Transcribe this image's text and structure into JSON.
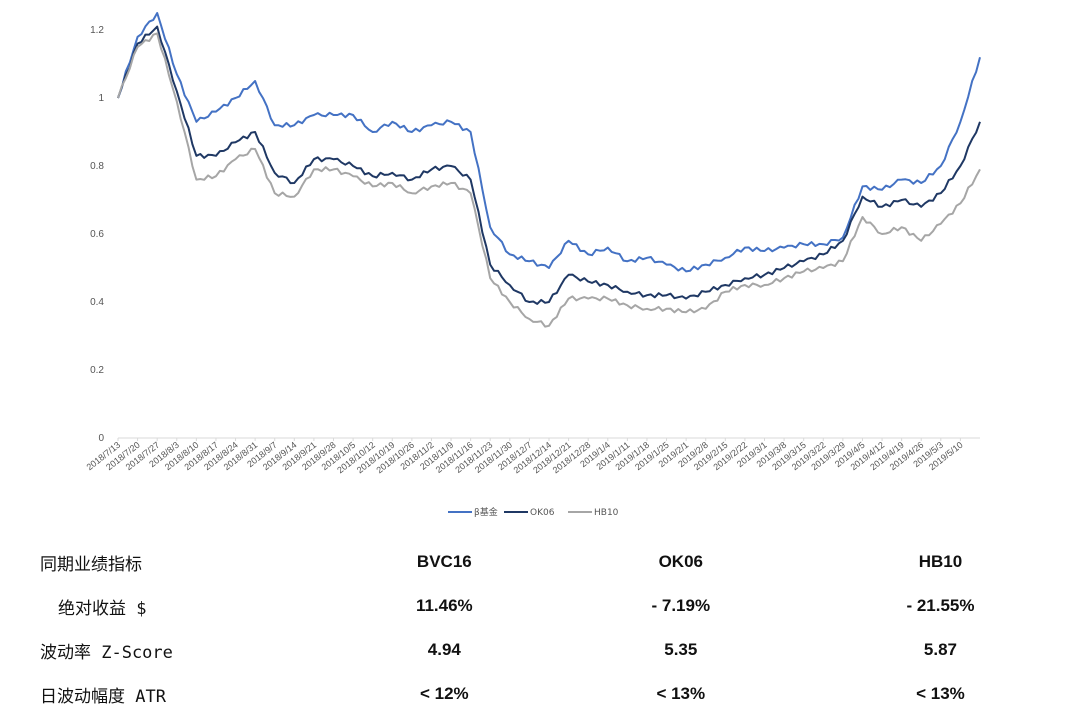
{
  "chart_data": {
    "type": "line",
    "ylim": [
      0,
      1.2
    ],
    "yticks": [
      "0",
      "0.2",
      "0.4",
      "0.6",
      "0.8",
      "1",
      "1.2"
    ],
    "x": [
      "2018/7/13",
      "2018/7/20",
      "2018/7/27",
      "2018/8/3",
      "2018/8/10",
      "2018/8/17",
      "2018/8/24",
      "2018/8/31",
      "2018/9/7",
      "2018/9/14",
      "2018/9/21",
      "2018/9/28",
      "2018/10/5",
      "2018/10/12",
      "2018/10/19",
      "2018/10/26",
      "2018/11/2",
      "2018/11/9",
      "2018/11/16",
      "2018/11/23",
      "2018/11/30",
      "2018/12/7",
      "2018/12/14",
      "2018/12/21",
      "2018/12/28",
      "2019/1/4",
      "2019/1/11",
      "2019/1/18",
      "2019/1/25",
      "2019/2/1",
      "2019/2/8",
      "2019/2/15",
      "2019/2/22",
      "2019/3/1",
      "2019/3/8",
      "2019/3/15",
      "2019/3/22",
      "2019/3/29",
      "2019/4/5",
      "2019/4/12",
      "2019/4/19",
      "2019/4/26",
      "2019/5/3",
      "2019/5/10",
      "2019/5/17"
    ],
    "x_tick_labels": [
      "2018/7/13",
      "2018/7/20",
      "2018/7/27",
      "2018/8/3",
      "2018/8/10",
      "2018/8/17",
      "2018/8/24",
      "2018/8/31",
      "2018/9/7",
      "2018/9/14",
      "2018/9/21",
      "2018/9/28",
      "2018/10/5",
      "2018/10/12",
      "2018/10/19",
      "2018/10/26",
      "2018/11/2",
      "2018/11/9",
      "2018/11/16",
      "2018/11/23",
      "2018/11/30",
      "2018/12/7",
      "2018/12/14",
      "2018/12/21",
      "2018/12/28",
      "2019/1/4",
      "2019/1/11",
      "2019/1/18",
      "2019/1/25",
      "2019/2/1",
      "2019/2/8",
      "2019/2/15",
      "2019/2/22",
      "2019/3/1",
      "2019/3/8",
      "2019/3/15",
      "2019/3/22",
      "2019/3/29",
      "2019/4/5",
      "2019/4/12",
      "2019/4/19",
      "2019/4/26",
      "2019/5/3",
      "2019/5/10"
    ],
    "series": [
      {
        "name": "β基金",
        "color": "#4472c4",
        "values": [
          1.0,
          1.18,
          1.25,
          1.07,
          0.93,
          0.96,
          1.0,
          1.05,
          0.92,
          0.92,
          0.95,
          0.95,
          0.95,
          0.9,
          0.93,
          0.9,
          0.92,
          0.93,
          0.9,
          0.62,
          0.54,
          0.52,
          0.5,
          0.58,
          0.54,
          0.56,
          0.52,
          0.53,
          0.51,
          0.49,
          0.51,
          0.53,
          0.56,
          0.55,
          0.56,
          0.57,
          0.57,
          0.59,
          0.74,
          0.73,
          0.76,
          0.75,
          0.8,
          0.93,
          1.12
        ]
      },
      {
        "name": "OK06",
        "color": "#1f3864",
        "values": [
          1.0,
          1.16,
          1.21,
          1.02,
          0.83,
          0.83,
          0.87,
          0.9,
          0.78,
          0.75,
          0.82,
          0.82,
          0.8,
          0.77,
          0.78,
          0.76,
          0.79,
          0.8,
          0.76,
          0.51,
          0.45,
          0.4,
          0.4,
          0.48,
          0.46,
          0.45,
          0.43,
          0.42,
          0.42,
          0.41,
          0.43,
          0.45,
          0.47,
          0.48,
          0.5,
          0.52,
          0.54,
          0.58,
          0.71,
          0.68,
          0.7,
          0.68,
          0.72,
          0.8,
          0.93
        ]
      },
      {
        "name": "HB10",
        "color": "#a6a6a6",
        "values": [
          1.0,
          1.15,
          1.19,
          0.99,
          0.76,
          0.77,
          0.82,
          0.85,
          0.72,
          0.71,
          0.79,
          0.79,
          0.77,
          0.74,
          0.75,
          0.72,
          0.74,
          0.75,
          0.72,
          0.47,
          0.4,
          0.35,
          0.33,
          0.41,
          0.41,
          0.41,
          0.39,
          0.38,
          0.38,
          0.37,
          0.38,
          0.43,
          0.45,
          0.45,
          0.47,
          0.49,
          0.5,
          0.52,
          0.65,
          0.6,
          0.62,
          0.58,
          0.63,
          0.69,
          0.79
        ]
      }
    ],
    "legend_position": "bottom"
  },
  "table": {
    "header_label": "同期业绩指标",
    "columns": [
      "BVC16",
      "OK06",
      "HB10"
    ],
    "rows": [
      {
        "label": "绝对收益 $",
        "values": [
          "11.46%",
          "- 7.19%",
          "- 21.55%"
        ]
      },
      {
        "label": "波动率 Z-Score",
        "values": [
          "4.94",
          "5.35",
          "5.87"
        ]
      },
      {
        "label": "日波动幅度 ATR",
        "values": [
          "< 12%",
          "< 13%",
          "< 13%"
        ]
      }
    ]
  }
}
